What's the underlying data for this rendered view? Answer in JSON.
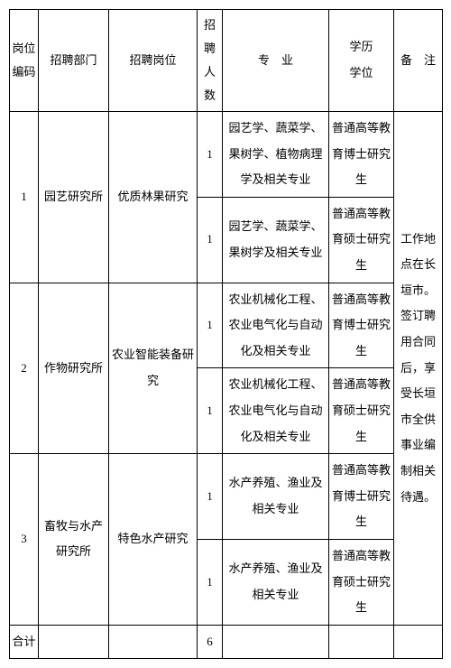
{
  "headers": {
    "code": "岗位编码",
    "dept": "招聘部门",
    "position": "招聘岗位",
    "count": "招聘人数",
    "major": "专　业",
    "edu1": "学历",
    "edu2": "学位",
    "note": "备　注"
  },
  "rows": [
    {
      "code": "1",
      "dept": "园艺研究所",
      "position": "优质林果研究",
      "sub": [
        {
          "count": "1",
          "major": "园艺学、蔬菜学、果树学、植物病理学及相关专业",
          "edu": "普通高等教育博士研究生"
        },
        {
          "count": "1",
          "major": "园艺学、蔬菜学、果树学及相关专业",
          "edu": "普通高等教育硕士研究生"
        }
      ]
    },
    {
      "code": "2",
      "dept": "作物研究所",
      "position": "农业智能装备研究",
      "sub": [
        {
          "count": "1",
          "major": "农业机械化工程、农业电气化与自动化及相关专业",
          "edu": "普通高等教育博士研究生"
        },
        {
          "count": "1",
          "major": "农业机械化工程、农业电气化与自动化及相关专业",
          "edu": "普通高等教育硕士研究生"
        }
      ]
    },
    {
      "code": "3",
      "dept": "畜牧与水产研究所",
      "position": "特色水产研究",
      "sub": [
        {
          "count": "1",
          "major": "水产养殖、渔业及相关专业",
          "edu": "普通高等教育博士研究生"
        },
        {
          "count": "1",
          "major": "水产养殖、渔业及相关专业",
          "edu": "普通高等教育硕士研究生"
        }
      ]
    }
  ],
  "total": {
    "label": "合计",
    "count": "6"
  },
  "note": "工作地点在长垣市。签订聘用合同后，享受长垣市全供事业编制相关待遇。",
  "style": {
    "border_color": "#000000",
    "background": "#ffffff",
    "font_size": 13,
    "line_height": 2.2
  }
}
